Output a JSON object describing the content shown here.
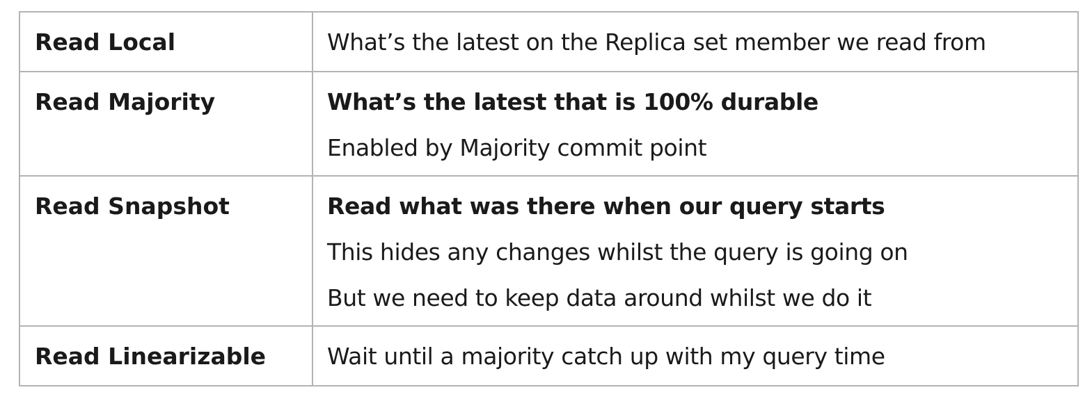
{
  "rows": [
    {
      "term": "Read Local",
      "lines": [
        {
          "text": "What’s the latest on the Replica set member we read from",
          "bold": false
        }
      ]
    },
    {
      "term": "Read Majority",
      "lines": [
        {
          "text": "What’s the latest that is 100% durable",
          "bold": true
        },
        {
          "text": "Enabled by Majority commit point",
          "bold": false
        }
      ]
    },
    {
      "term": "Read Snapshot",
      "lines": [
        {
          "text": "Read what was there when our query starts",
          "bold": true
        },
        {
          "text": "This hides any changes whilst the query is going on",
          "bold": false
        },
        {
          "text": "But we need to keep data around whilst we do it",
          "bold": false
        }
      ]
    },
    {
      "term": "Read Linearizable",
      "lines": [
        {
          "text": "Wait until a majority catch up with my query time",
          "bold": false
        }
      ]
    }
  ]
}
